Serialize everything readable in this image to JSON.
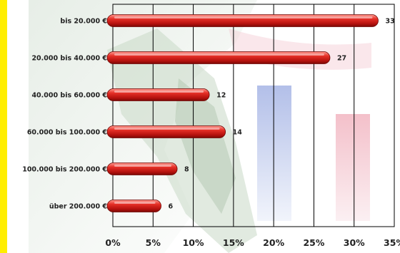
{
  "chart_data": {
    "type": "bar",
    "orientation": "horizontal",
    "categories": [
      "bis 20.000 €",
      "20.000 bis 40.000 €",
      "40.000 bis 60.000 €",
      "60.000 bis 100.000 €",
      "100.000 bis 200.000 €",
      "über 200.000 €"
    ],
    "values": [
      33,
      27,
      12,
      14,
      8,
      6
    ],
    "value_labels": [
      "33",
      "27",
      "12",
      "14",
      "8",
      "6"
    ],
    "xlim": [
      0,
      35
    ],
    "x_ticks": [
      "0%",
      "5%",
      "10%",
      "15%",
      "20%",
      "25%",
      "30%",
      "35%"
    ],
    "grid": true,
    "bar_color": "#e02a25",
    "accent_color": "#ffee00",
    "background_color": "#ffffff"
  }
}
